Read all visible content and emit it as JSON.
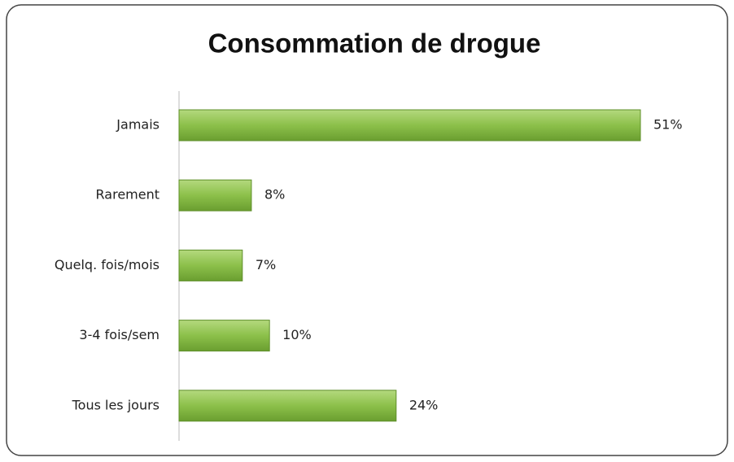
{
  "chart_data": {
    "type": "hbar",
    "title": "Consommation  de drogue",
    "categories": [
      "Jamais",
      "Rarement",
      "Quelq. fois/mois",
      "3-4 fois/sem",
      "Tous les jours"
    ],
    "values": [
      51,
      8,
      7,
      10,
      24
    ],
    "value_labels": [
      "51%",
      "8%",
      "7%",
      "10%",
      "24%"
    ],
    "color": "#8cc04a"
  }
}
